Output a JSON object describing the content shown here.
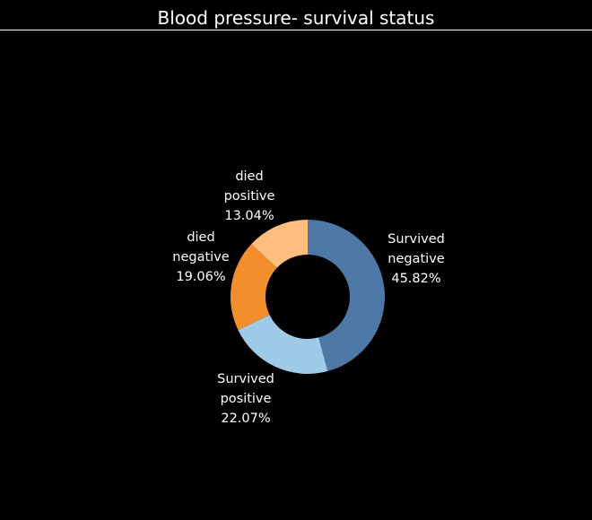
{
  "chart_data": {
    "type": "pie",
    "title": "Blood pressure- survival status",
    "style": "donut",
    "slices": [
      {
        "category": "Survived",
        "status": "negative",
        "percent": "45.82%",
        "value": 45.82,
        "color": "#4e79a7"
      },
      {
        "category": "Survived",
        "status": "positive",
        "percent": "22.07%",
        "value": 22.07,
        "color": "#a0cbe8"
      },
      {
        "category": "died",
        "status": "negative",
        "percent": "19.06%",
        "value": 19.06,
        "color": "#f28e2b"
      },
      {
        "category": "died",
        "status": "positive",
        "percent": "13.04%",
        "value": 13.04,
        "color": "#ffbe7d"
      }
    ],
    "background": "#000000"
  }
}
